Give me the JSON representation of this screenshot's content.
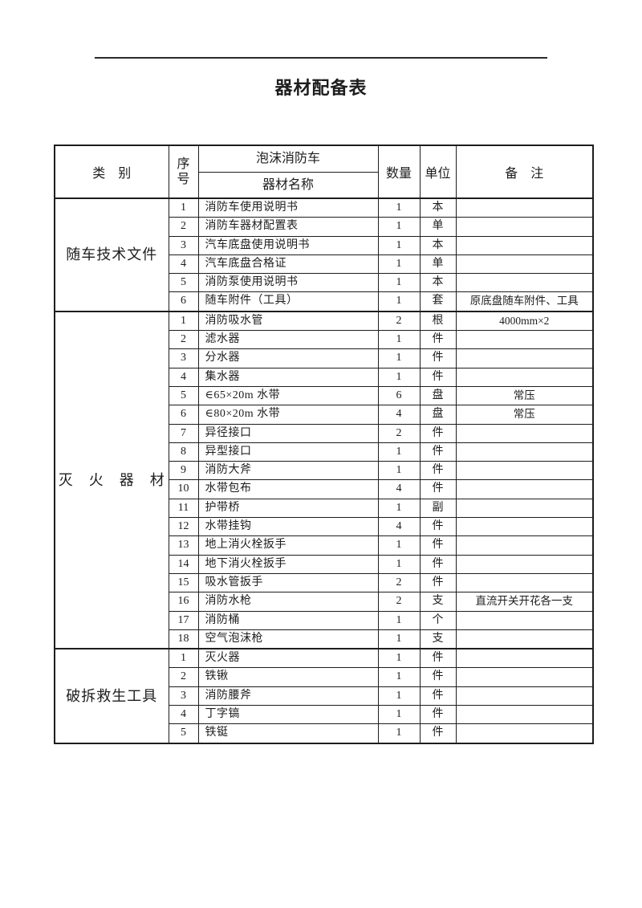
{
  "title": "器材配备表",
  "table": {
    "header": {
      "category": "类　别",
      "serial_line1": "序",
      "serial_line2": "号",
      "vehicle": "泡沫消防车",
      "equipment_name": "器材名称",
      "quantity": "数量",
      "unit": "单位",
      "remarks": "备　注"
    },
    "sections": [
      {
        "category": "随车技术文件",
        "rows": [
          {
            "no": "1",
            "name": "消防车使用说明书",
            "qty": "1",
            "unit": "本",
            "remark": ""
          },
          {
            "no": "2",
            "name": "消防车器材配置表",
            "qty": "1",
            "unit": "单",
            "remark": ""
          },
          {
            "no": "3",
            "name": "汽车底盘使用说明书",
            "qty": "1",
            "unit": "本",
            "remark": ""
          },
          {
            "no": "4",
            "name": "汽车底盘合格证",
            "qty": "1",
            "unit": "单",
            "remark": ""
          },
          {
            "no": "5",
            "name": "消防泵使用说明书",
            "qty": "1",
            "unit": "本",
            "remark": ""
          },
          {
            "no": "6",
            "name": "随车附件（工具）",
            "qty": "1",
            "unit": "套",
            "remark": "原底盘随车附件、工具"
          }
        ]
      },
      {
        "category": "灭　火　器　材",
        "rows": [
          {
            "no": "1",
            "name": "消防吸水管",
            "qty": "2",
            "unit": "根",
            "remark": "4000mm×2"
          },
          {
            "no": "2",
            "name": "滤水器",
            "qty": "1",
            "unit": "件",
            "remark": ""
          },
          {
            "no": "3",
            "name": "分水器",
            "qty": "1",
            "unit": "件",
            "remark": ""
          },
          {
            "no": "4",
            "name": "集水器",
            "qty": "1",
            "unit": "件",
            "remark": ""
          },
          {
            "no": "5",
            "name": "∈65×20m 水带",
            "qty": "6",
            "unit": "盘",
            "remark": "常压"
          },
          {
            "no": "6",
            "name": "∈80×20m 水带",
            "qty": "4",
            "unit": "盘",
            "remark": "常压"
          },
          {
            "no": "7",
            "name": "异径接口",
            "qty": "2",
            "unit": "件",
            "remark": ""
          },
          {
            "no": "8",
            "name": "异型接口",
            "qty": "1",
            "unit": "件",
            "remark": ""
          },
          {
            "no": "9",
            "name": "消防大斧",
            "qty": "1",
            "unit": "件",
            "remark": ""
          },
          {
            "no": "10",
            "name": "水带包布",
            "qty": "4",
            "unit": "件",
            "remark": ""
          },
          {
            "no": "11",
            "name": "护带桥",
            "qty": "1",
            "unit": "副",
            "remark": ""
          },
          {
            "no": "12",
            "name": "水带挂钩",
            "qty": "4",
            "unit": "件",
            "remark": ""
          },
          {
            "no": "13",
            "name": "地上消火栓扳手",
            "qty": "1",
            "unit": "件",
            "remark": ""
          },
          {
            "no": "14",
            "name": "地下消火栓扳手",
            "qty": "1",
            "unit": "件",
            "remark": ""
          },
          {
            "no": "15",
            "name": "吸水管扳手",
            "qty": "2",
            "unit": "件",
            "remark": ""
          },
          {
            "no": "16",
            "name": "消防水枪",
            "qty": "2",
            "unit": "支",
            "remark": "直流开关开花各一支"
          },
          {
            "no": "17",
            "name": "消防桶",
            "qty": "1",
            "unit": "个",
            "remark": ""
          },
          {
            "no": "18",
            "name": "空气泡沫枪",
            "qty": "1",
            "unit": "支",
            "remark": ""
          }
        ]
      },
      {
        "category": "破拆救生工具",
        "rows": [
          {
            "no": "1",
            "name": "灭火器",
            "qty": "1",
            "unit": "件",
            "remark": ""
          },
          {
            "no": "2",
            "name": "铁锹",
            "qty": "1",
            "unit": "件",
            "remark": ""
          },
          {
            "no": "3",
            "name": "消防腰斧",
            "qty": "1",
            "unit": "件",
            "remark": ""
          },
          {
            "no": "4",
            "name": "丁字镐",
            "qty": "1",
            "unit": "件",
            "remark": ""
          },
          {
            "no": "5",
            "name": "铁铤",
            "qty": "1",
            "unit": "件",
            "remark": ""
          }
        ]
      }
    ]
  },
  "colors": {
    "text": "#1d1d1d",
    "border": "#1d1d1d",
    "background": "#ffffff"
  }
}
